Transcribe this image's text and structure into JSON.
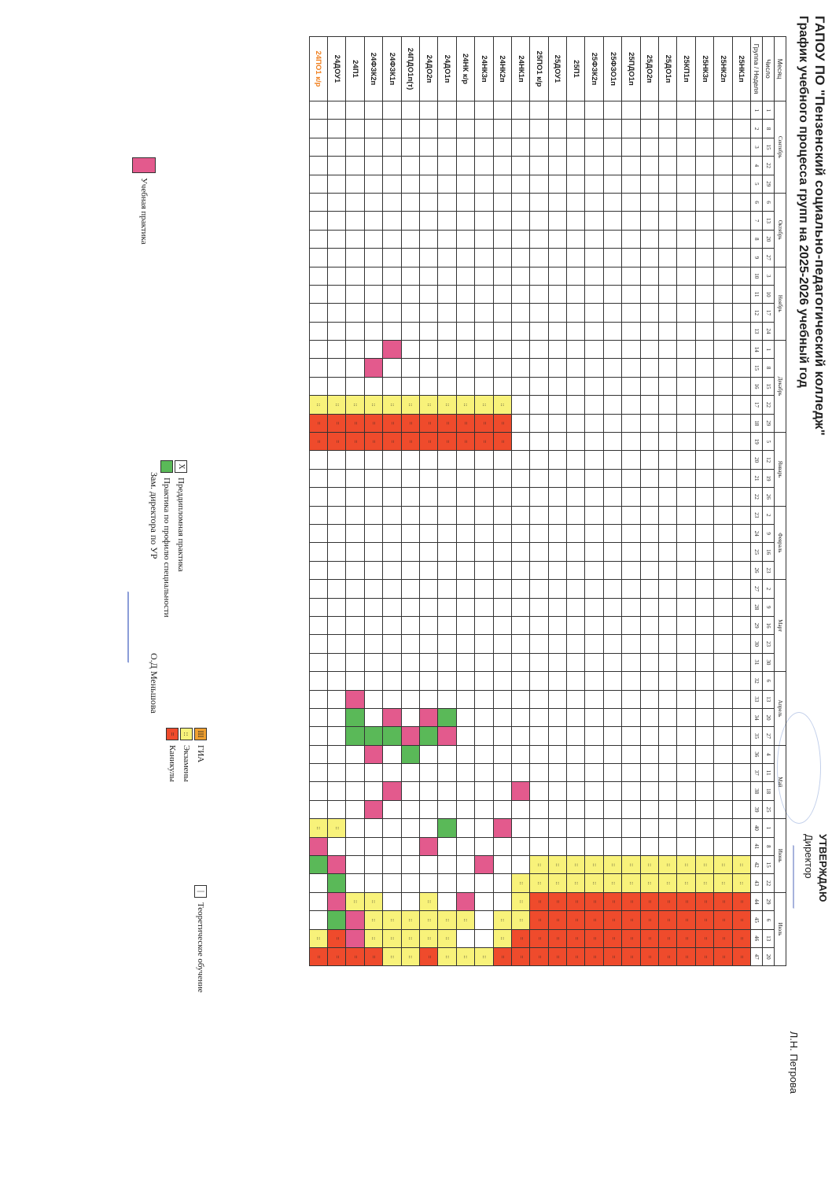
{
  "header": {
    "org": "ГАПОУ ПО \"Пензенский социально-педагогический колледж\"",
    "subtitle": "График учебного процесса групп на 2025-2026 учебный год",
    "approve_label": "УТВЕРЖДАЮ",
    "approve_role": "Директор",
    "approve_name": "Л.Н. Петрова"
  },
  "table": {
    "label_month": "Месяц",
    "label_number": "Число",
    "label_group": "Группа",
    "label_week": "Неделя",
    "months": [
      {
        "name": "Сентябрь",
        "span": 5
      },
      {
        "name": "Октябрь",
        "span": 4
      },
      {
        "name": "Ноябрь",
        "span": 4
      },
      {
        "name": "Декабрь",
        "span": 5
      },
      {
        "name": "Январь",
        "span": 4
      },
      {
        "name": "Февраль",
        "span": 4
      },
      {
        "name": "Март",
        "span": 5
      },
      {
        "name": "Апрель",
        "span": 4
      },
      {
        "name": "Май",
        "span": 4
      },
      {
        "name": "Июнь",
        "span": 4
      },
      {
        "name": "Июль",
        "span": 4
      }
    ],
    "dates": [
      "1",
      "8",
      "15",
      "22",
      "29",
      "6",
      "13",
      "20",
      "27",
      "3",
      "10",
      "17",
      "24",
      "1",
      "8",
      "15",
      "22",
      "29",
      "5",
      "12",
      "19",
      "26",
      "2",
      "9",
      "16",
      "23",
      "2",
      "9",
      "16",
      "23",
      "30",
      "6",
      "13",
      "20",
      "27",
      "4",
      "11",
      "18",
      "25",
      "1",
      "8",
      "15",
      "22",
      "29",
      "6",
      "13",
      "20"
    ],
    "weeks": [
      "1",
      "2",
      "3",
      "4",
      "5",
      "6",
      "7",
      "8",
      "9",
      "10",
      "11",
      "12",
      "13",
      "14",
      "15",
      "16",
      "17",
      "18",
      "19",
      "20",
      "21",
      "22",
      "23",
      "24",
      "25",
      "26",
      "27",
      "28",
      "29",
      "30",
      "31",
      "32",
      "33",
      "34",
      "35",
      "36",
      "37",
      "38",
      "39",
      "40",
      "41",
      "42",
      "43",
      "44",
      "45",
      "46",
      "47"
    ],
    "rows": [
      {
        "group": "25НК1п",
        "cells": "tttttttttttttttttttttttttttttttttttttttttgghhhhh"
      },
      {
        "group": "25НК2п",
        "cells": "tttttttttttttttttttttttttttttttttttttttttgghhhhh"
      },
      {
        "group": "25НК3п",
        "cells": "tttttttttttttttttttttttttttttttttttttttttgghhhhh"
      },
      {
        "group": "25КП1п",
        "cells": "tttttttttttttttttttttttttttttttttttttttttgghhhhh"
      },
      {
        "group": "25ДО1п",
        "cells": "tttttttttttttttttttttttttttttttttttttttttgghhhhh"
      },
      {
        "group": "25ДО2п",
        "cells": "tttttttttttttttttttttttttttttttttttttttttgghhhhh"
      },
      {
        "group": "25ПДО1п",
        "cells": "tttttttttttttttttttttttttttttttttttttttttgghhhhh"
      },
      {
        "group": "25ФЗО1п",
        "cells": "tttttttttttttttttttttttttttttttttttttttttgghhhhh"
      },
      {
        "group": "25ФЗК2п",
        "cells": "tttttttttttttttttttttttttttttttttttttttttgghhhhh"
      },
      {
        "group": "25П1",
        "cells": "tttttttttttttttttttttttttttttttttttttttttgghhhhh"
      },
      {
        "group": "25ДОУ1",
        "cells": "tttttttttttttttttttttttttttttttttttttttttgghhhhh"
      },
      {
        "group": "25ПО1 к/р",
        "cells": "tttttttttttttttttttttttttttttttttttttttttgghhhhh"
      },
      {
        "group": "24НК1п",
        "cells": "tttttttttttttttttttttttttttttttttttttyttttegghhhhh"
      },
      {
        "group": "24НК2п",
        "cells": "ttttttttttttttttehhttttttttttttttttttttyttttgghhhhh"
      },
      {
        "group": "24НК3п",
        "cells": "ttttttttttttttttehhttttttttttttttttttttttyttttgghhhhh"
      },
      {
        "group": "24НК к/р",
        "cells": "ttttttttttttttttehhttttttttttttttttttttttttyetgghhhhh"
      },
      {
        "group": "24ДО1п",
        "cells": "ttttttttttttttttehhttttttttttttttpyttttpttttegghhhhh"
      },
      {
        "group": "24ДО2п",
        "cells": "ttttttttttttttttehhttttttttttttttyptttttyttegghhhhh"
      },
      {
        "group": "24ПДО1п(т)",
        "cells": "ttttttttttttttttehhtttttttttttttttypttttttttegghhhhh"
      },
      {
        "group": "24ФЗК1п",
        "cells": "tttttttttttttyttehhttttttttttttttypttyttttttegghhhhh"
      },
      {
        "group": "24ФЗК2п",
        "cells": "ttttttttttttttytehhtttttttttttttttpyttyttttegghhhhh"
      },
      {
        "group": "24П1",
        "cells": "ttttttttttttttttehhtttttttttttttypptttttttteyyhhhhh"
      },
      {
        "group": "24ДОУ1",
        "cells": "ttttttttttttttttehhttttttttttttttttttttetypyphhhhh"
      },
      {
        "group": "24ПО1 к/р",
        "cells": "ttttttttttttttttehhtttttttttttttttttttteyptttehhhhh"
      }
    ]
  },
  "legend": {
    "study_practice": "Учебная практика",
    "prediploma": "Преддипломная практика",
    "profile_practice": "Практика по профилю специальности",
    "gia": "ГИА",
    "exams": "Экзамены",
    "holidays": "Каникулы",
    "theory": "Теоретическое обучение",
    "gia_symbol": "III",
    "exam_symbol": "::",
    "holiday_symbol": "=",
    "prediploma_symbol": "X",
    "theory_symbol": "|"
  },
  "footer": {
    "deputy_role": "Зам. директора по УР",
    "deputy_name": "О.Д Меньшова"
  },
  "colors": {
    "holiday": "#ef4b2c",
    "exam": "#f8f27a",
    "study_practice": "#e35a8d",
    "profile_practice": "#5ab958"
  }
}
